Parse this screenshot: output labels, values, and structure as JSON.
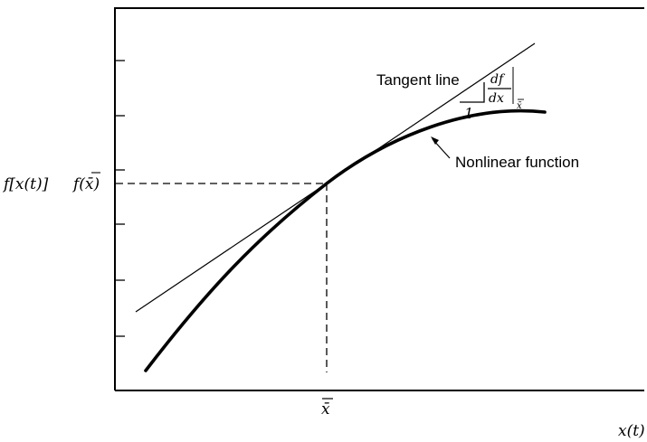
{
  "diagram": {
    "y_axis_label": "f[x(t)]",
    "point_value_label": "f(x̄)",
    "x_point_label": "x̄",
    "x_axis_label": "x(t)",
    "tangent_label": "Tangent line",
    "slope_numerator": "df",
    "slope_denominator": "dx",
    "slope_eval": "x̄",
    "slope_run_label": "1",
    "curve_label": "Nonlinear function"
  }
}
